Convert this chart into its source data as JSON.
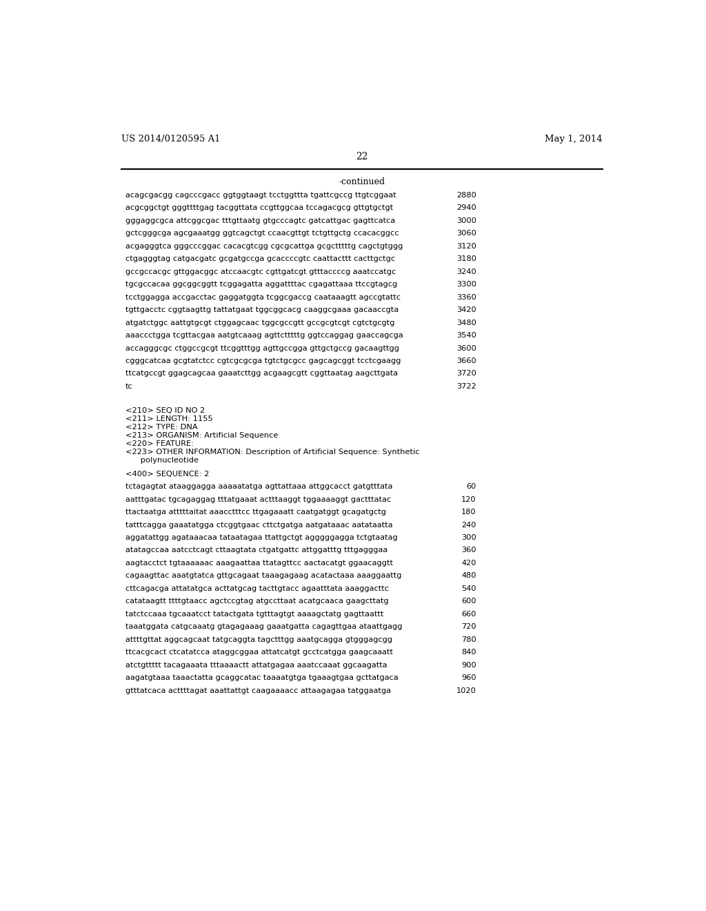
{
  "header_left": "US 2014/0120595 A1",
  "header_right": "May 1, 2014",
  "page_number": "22",
  "continued_label": "-continued",
  "background_color": "#ffffff",
  "mono_lines": [
    {
      "text": "acagcgacgg cagcccgacc ggtggtaagt tcctggttta tgattcgccg ttgtcggaat",
      "num": "2880"
    },
    {
      "text": "acgcggctgt gggttttgag tacggttata ccgttggcaa tccagacgcg gttgtgctgt",
      "num": "2940"
    },
    {
      "text": "gggaggcgca attcggcgac tttgttaatg gtgcccagtc gatcattgac gagttcatca",
      "num": "3000"
    },
    {
      "text": "gctcgggcga agcgaaatgg ggtcagctgt ccaacgttgt tctgttgctg ccacacggcc",
      "num": "3060"
    },
    {
      "text": "acgagggtca gggcccggac cacacgtcgg cgcgcattga gcgctttttg cagctgtggg",
      "num": "3120"
    },
    {
      "text": "ctgagggtag catgacgatc gcgatgccga gcaccccgtc caattacttt cacttgctgc",
      "num": "3180"
    },
    {
      "text": "gccgccacgc gttggacggc atccaacgtc cgttgatcgt gtttaccccg aaatccatgc",
      "num": "3240"
    },
    {
      "text": "tgcgccacaa ggcggcggtt tcggagatta aggattttac cgagattaaa ttccgtagcg",
      "num": "3300"
    },
    {
      "text": "tcctggagga accgacctac gaggatggta tcggcgaccg caataaagtt agccgtattc",
      "num": "3360"
    },
    {
      "text": "tgttgacctc cggtaagttg tattatgaat tggcggcacg caaggcgaaa gacaaccgta",
      "num": "3420"
    },
    {
      "text": "atgatctggc aattgtgcgt ctggagcaac tggcgccgtt gccgcgtcgt cgtctgcgtg",
      "num": "3480"
    },
    {
      "text": "aaaccctgga tcgttacgaa aatgtcaaag agttctttttg ggtccaggag gaaccagcga",
      "num": "3540"
    },
    {
      "text": "accagggcgc ctggccgcgt ttcggtttgg agttgccgga gttgctgccg gacaagttgg",
      "num": "3600"
    },
    {
      "text": "cgggcatcaa gcgtatctcc cgtcgcgcga tgtctgcgcc gagcagcggt tcctcgaagg",
      "num": "3660"
    },
    {
      "text": "ttcatgccgt ggagcagcaa gaaatcttgg acgaagcgtt cggttaatag aagcttgata",
      "num": "3720"
    },
    {
      "text": "tc",
      "num": "3722"
    }
  ],
  "metadata_lines": [
    "<210> SEQ ID NO 2",
    "<211> LENGTH: 1155",
    "<212> TYPE: DNA",
    "<213> ORGANISM: Artificial Sequence",
    "<220> FEATURE:",
    "<223> OTHER INFORMATION: Description of Artificial Sequence: Synthetic",
    "      polynucleotide"
  ],
  "seq400_label": "<400> SEQUENCE: 2",
  "seq_lines": [
    {
      "text": "tctagagtat ataaggagga aaaaatatga agttattaaa attggcacct gatgtttata",
      "num": "60"
    },
    {
      "text": "aatttgatac tgcagaggag tttatgaaat actttaaggt tggaaaaggt gactttatac",
      "num": "120"
    },
    {
      "text": "ttactaatga atttttaitat aaacctttcc ttgagaaatt caatgatggt gcagatgctg",
      "num": "180"
    },
    {
      "text": "tatttcagga gaaatatgga ctcggtgaac cttctgatga aatgataaac aatataatta",
      "num": "240"
    },
    {
      "text": "aggatattgg agataaacaa tataatagaa ttattgctgt agggggagga tctgtaatag",
      "num": "300"
    },
    {
      "text": "atatagccaa aatcctcagt cttaagtata ctgatgattc attggatttg tttgagggaa",
      "num": "360"
    },
    {
      "text": "aagtacctct tgtaaaaaac aaagaattaa ttatagttcc aactacatgt ggaacaggtt",
      "num": "420"
    },
    {
      "text": "cagaagttac aaatgtatca gttgcagaat taaagagaag acatactaaa aaaggaattg",
      "num": "480"
    },
    {
      "text": "cttcagacga attatatgca acttatgcag tacttgtacc agaatttata aaaggacttc",
      "num": "540"
    },
    {
      "text": "catataagtt ttttgtaacc agctccgtag atgccttaat acatgcaaca gaagcttatg",
      "num": "600"
    },
    {
      "text": "tatctccaaa tgcaaatcct tatactgata tgtttagtgt aaaagctatg gagttaattt",
      "num": "660"
    },
    {
      "text": "taaatggata catgcaaatg gtagagaaag gaaatgatta cagagttgaa ataattgagg",
      "num": "720"
    },
    {
      "text": "attttgttat aggcagcaat tatgcaggta tagctttgg aaatgcagga gtgggagcgg",
      "num": "780"
    },
    {
      "text": "ttcacgcact ctcatatcca ataggcggaa attatcatgt gcctcatgga gaagcaaatt",
      "num": "840"
    },
    {
      "text": "atctgttttt tacagaaata tttaaaactt attatgagaa aaatccaaat ggcaagatta",
      "num": "900"
    },
    {
      "text": "aagatgtaaa taaactatta gcaggcatac taaaatgtga tgaaagtgaa gcttatgaca",
      "num": "960"
    },
    {
      "text": "gtttatcaca acttttagat aaattattgt caagaaaacc attaagagaa tatggaatga",
      "num": "1020"
    }
  ]
}
